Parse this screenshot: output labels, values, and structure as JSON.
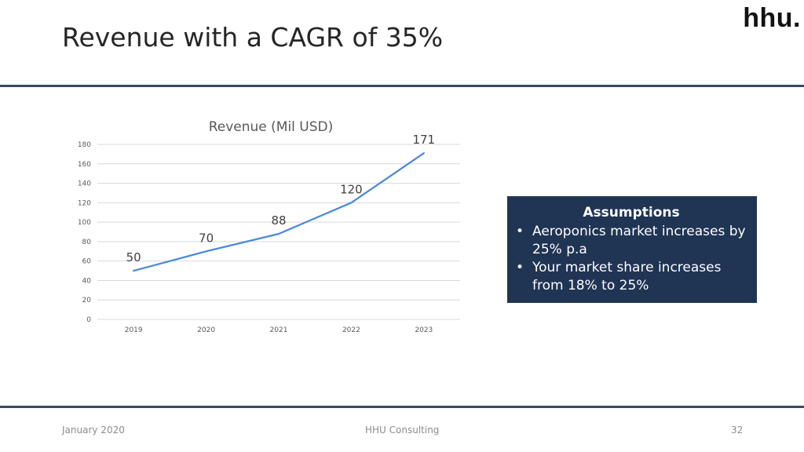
{
  "logo": "hhu.",
  "slide": {
    "title": "Revenue with a CAGR of 35%"
  },
  "assumptions": {
    "title": "Assumptions",
    "items": [
      "Aeroponics market increases by 25% p.a",
      "Your market share increases from 18% to 25%"
    ]
  },
  "footer": {
    "date": "January 2020",
    "company": "HHU Consulting",
    "page": "32"
  },
  "colors": {
    "line": "#4a89dc",
    "rule": "#3a4a61",
    "box": "#203454"
  },
  "chart_data": {
    "type": "line",
    "title": "Revenue (Mil USD)",
    "xlabel": "",
    "ylabel": "",
    "categories": [
      "2019",
      "2020",
      "2021",
      "2022",
      "2023"
    ],
    "series": [
      {
        "values": [
          50,
          70,
          88,
          120,
          171
        ]
      }
    ],
    "data_labels": [
      "50",
      "70",
      "88",
      "120",
      "171"
    ],
    "ylim": [
      0,
      180
    ],
    "yticks": [
      0,
      20,
      40,
      60,
      80,
      100,
      120,
      140,
      160,
      180
    ],
    "grid": true,
    "legend": "none"
  }
}
